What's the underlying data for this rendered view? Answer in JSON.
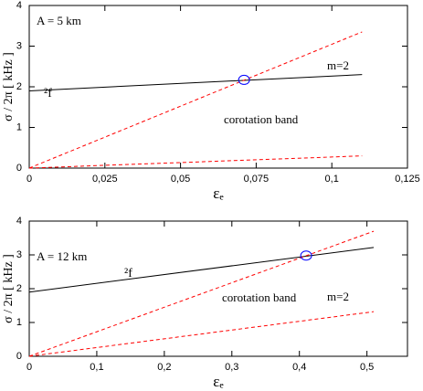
{
  "chart_data": [
    {
      "type": "line",
      "annotations": [
        "A = 5 km",
        "²f",
        "m=2",
        "corotation band"
      ],
      "x_label": "εₑ",
      "y_label": "σ / 2π [ kHz ]",
      "xlim": [
        0,
        0.125
      ],
      "ylim": [
        0,
        4
      ],
      "xticks": [
        0,
        {
          "value": 0.025,
          "label": "0,025"
        },
        {
          "value": 0.05,
          "label": "0,05"
        },
        {
          "value": 0.075,
          "label": "0,075"
        },
        {
          "value": 0.1,
          "label": "0,1"
        },
        {
          "value": 0.125,
          "label": "0,125"
        }
      ],
      "yticks": [
        0,
        1,
        2,
        3,
        4
      ],
      "series": [
        {
          "color": "#000000",
          "style": "solid",
          "x": [
            0,
            0.11
          ],
          "values": [
            1.9,
            2.3
          ]
        },
        {
          "color": "#ff0000",
          "style": "dashed",
          "x": [
            0,
            0.11
          ],
          "values": [
            0,
            3.35
          ]
        },
        {
          "color": "#ff0000",
          "style": "dashed",
          "x": [
            0,
            0.11
          ],
          "values": [
            0,
            0.3
          ]
        },
        {
          "color": "#0000ff",
          "style": "marker",
          "x": [
            0.071
          ],
          "values": [
            2.17
          ]
        }
      ]
    },
    {
      "type": "line",
      "annotations": [
        "A = 12 km",
        "²f",
        "m=2",
        "corotation band"
      ],
      "x_label": "εₑ",
      "y_label": "σ / 2π [ kHz ]",
      "xlim": [
        0,
        0.56
      ],
      "ylim": [
        0,
        4
      ],
      "xticks": [
        0,
        {
          "value": 0.1,
          "label": "0,1"
        },
        {
          "value": 0.2,
          "label": "0,2"
        },
        {
          "value": 0.3,
          "label": "0,3"
        },
        {
          "value": 0.4,
          "label": "0,4"
        },
        {
          "value": 0.5,
          "label": "0,5"
        }
      ],
      "yticks": [
        0,
        1,
        2,
        3,
        4
      ],
      "series": [
        {
          "color": "#000000",
          "style": "solid",
          "x": [
            0,
            0.51
          ],
          "values": [
            1.9,
            3.22
          ]
        },
        {
          "color": "#ff0000",
          "style": "dashed",
          "x": [
            0,
            0.51
          ],
          "values": [
            0,
            3.7
          ]
        },
        {
          "color": "#ff0000",
          "style": "dashed",
          "x": [
            0,
            0.51
          ],
          "values": [
            0,
            1.32
          ]
        },
        {
          "color": "#0000ff",
          "style": "marker",
          "x": [
            0.41
          ],
          "values": [
            2.98
          ]
        }
      ]
    }
  ]
}
